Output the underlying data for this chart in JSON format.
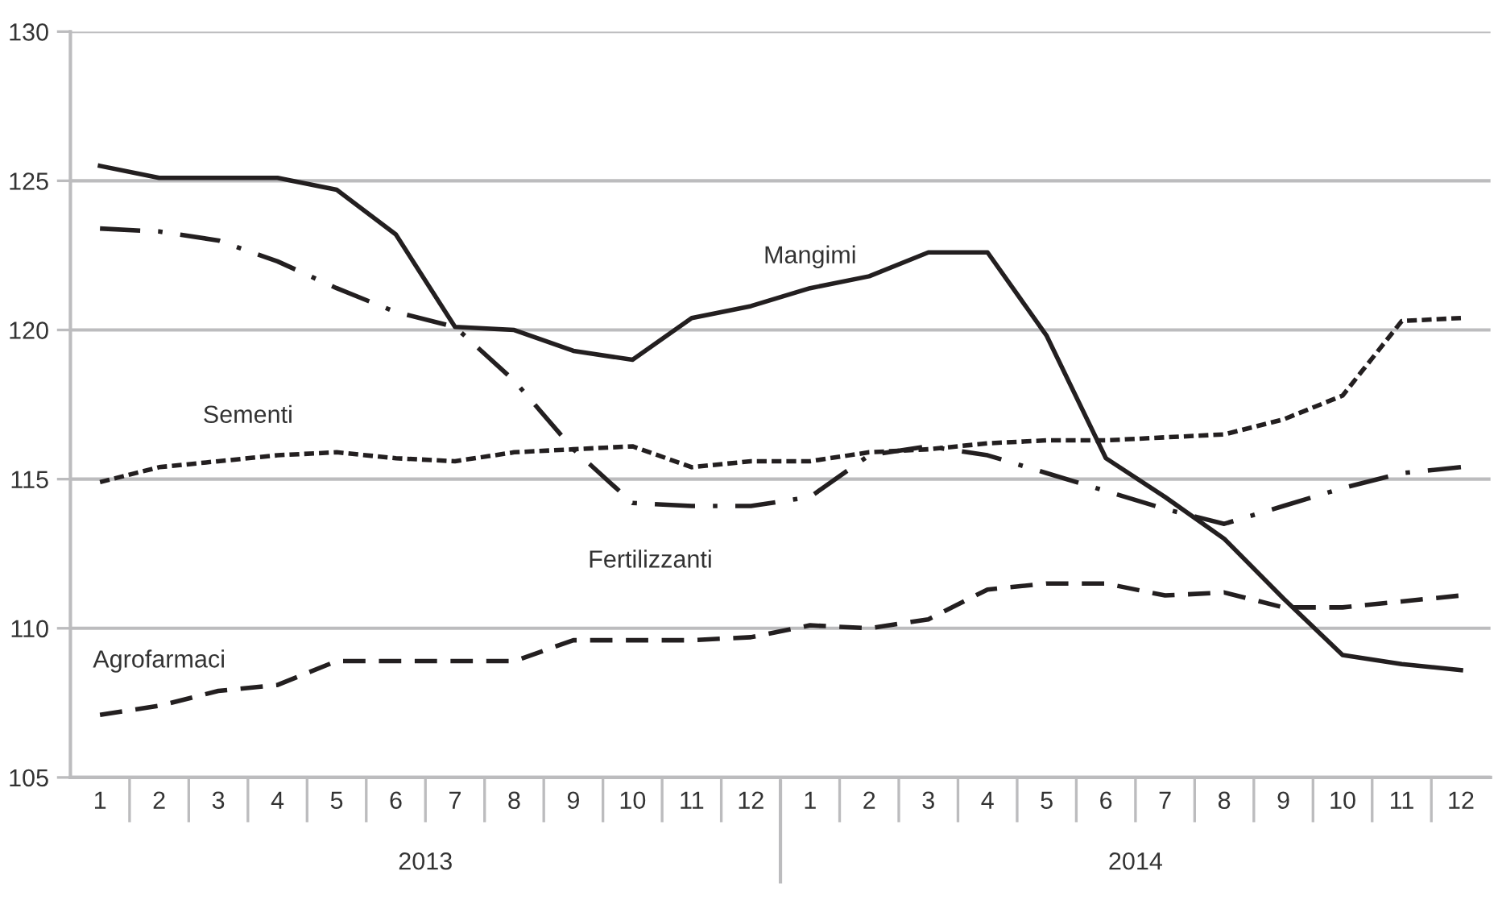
{
  "chart_data": {
    "type": "line",
    "categories": [
      "1",
      "2",
      "3",
      "4",
      "5",
      "6",
      "7",
      "8",
      "9",
      "10",
      "11",
      "12",
      "1",
      "2",
      "3",
      "4",
      "5",
      "6",
      "7",
      "8",
      "9",
      "10",
      "11",
      "12"
    ],
    "annotations": [
      "2013",
      "2014"
    ],
    "series": [
      {
        "name": "Mangimi",
        "color": "#231f20",
        "line_style": "solid",
        "values": [
          125.5,
          125.1,
          125.1,
          125.1,
          124.7,
          123.2,
          120.1,
          120.0,
          119.3,
          119.0,
          120.4,
          120.8,
          121.4,
          121.8,
          122.6,
          122.6,
          119.8,
          115.7,
          114.4,
          113.0,
          111.0,
          109.1,
          108.8,
          108.6
        ]
      },
      {
        "name": "Fertilizzanti",
        "color": "#231f20",
        "line_style": "dashdot",
        "values": [
          123.4,
          123.3,
          123.0,
          122.3,
          121.4,
          120.6,
          120.1,
          118.3,
          116.0,
          114.2,
          114.1,
          114.1,
          114.4,
          115.8,
          116.1,
          115.8,
          115.2,
          114.6,
          114.0,
          113.5,
          114.1,
          114.7,
          115.2,
          115.4
        ]
      },
      {
        "name": "Sementi",
        "color": "#231f20",
        "line_style": "dotted",
        "values": [
          114.9,
          115.4,
          115.6,
          115.8,
          115.9,
          115.7,
          115.6,
          115.9,
          116.0,
          116.1,
          115.4,
          115.6,
          115.6,
          115.9,
          116.0,
          116.2,
          116.3,
          116.3,
          116.4,
          116.5,
          117.0,
          117.8,
          120.3,
          120.4
        ]
      },
      {
        "name": "Agrofarmaci",
        "color": "#231f20",
        "line_style": "dashed",
        "values": [
          107.1,
          107.4,
          107.9,
          108.1,
          108.9,
          108.9,
          108.9,
          108.9,
          109.6,
          109.6,
          109.6,
          109.7,
          110.1,
          110.0,
          110.3,
          111.3,
          111.5,
          111.5,
          111.1,
          111.2,
          110.7,
          110.7,
          110.9,
          111.1
        ]
      }
    ],
    "ylim": [
      105,
      130
    ],
    "yticks": [
      105,
      110,
      115,
      120,
      125,
      130
    ],
    "grid": "y",
    "legend": false
  }
}
